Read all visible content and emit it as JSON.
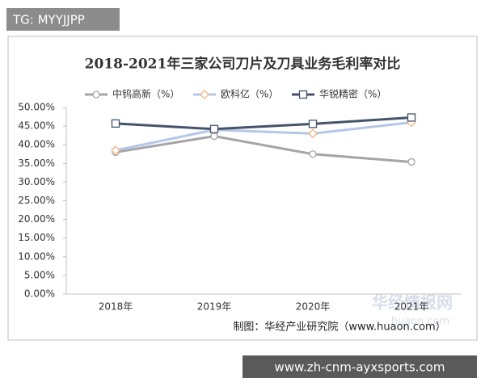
{
  "chart_data": {
    "type": "line",
    "title": "2018-2021年三家公司刀片及刀具业务毛利率对比",
    "source": "制图：华经产业研究院（www.huaon.com）",
    "categories": [
      "2018年",
      "2019年",
      "2020年",
      "2021年"
    ],
    "series": [
      {
        "name": "中钨高新（%）",
        "color": "#a5a5a5",
        "marker": "circle",
        "marker_color": "#a5a5a5",
        "values": [
          38.0,
          42.3,
          37.5,
          35.4
        ]
      },
      {
        "name": "欧科亿（%）",
        "color": "#b4c7e7",
        "marker": "diamond",
        "marker_color": "#f4b183",
        "values": [
          38.5,
          44.0,
          43.0,
          46.0
        ]
      },
      {
        "name": "华锐精密（%）",
        "color": "#44546a",
        "marker": "square",
        "marker_color": "#44546a",
        "values": [
          45.7,
          44.2,
          45.6,
          47.3
        ]
      }
    ],
    "ylim": [
      0,
      50
    ],
    "yticks": [
      {
        "value": 0,
        "label": "0.00%"
      },
      {
        "value": 5,
        "label": "5.00%"
      },
      {
        "value": 10,
        "label": "10.00%"
      },
      {
        "value": 15,
        "label": "15.00%"
      },
      {
        "value": 20,
        "label": "20.00%"
      },
      {
        "value": 25,
        "label": "25.00%"
      },
      {
        "value": 30,
        "label": "30.00%"
      },
      {
        "value": 35,
        "label": "35.00%"
      },
      {
        "value": 40,
        "label": "40.00%"
      },
      {
        "value": 45,
        "label": "45.00%"
      },
      {
        "value": 50,
        "label": "50.00%"
      }
    ],
    "grid": false,
    "legend": "top"
  },
  "overlays": {
    "badge": "TG: MYYJJPP",
    "watermark_name": "华经情报网",
    "watermark_url": "huaon.com",
    "banner": "www.zh-cnm-ayxsports.com"
  }
}
